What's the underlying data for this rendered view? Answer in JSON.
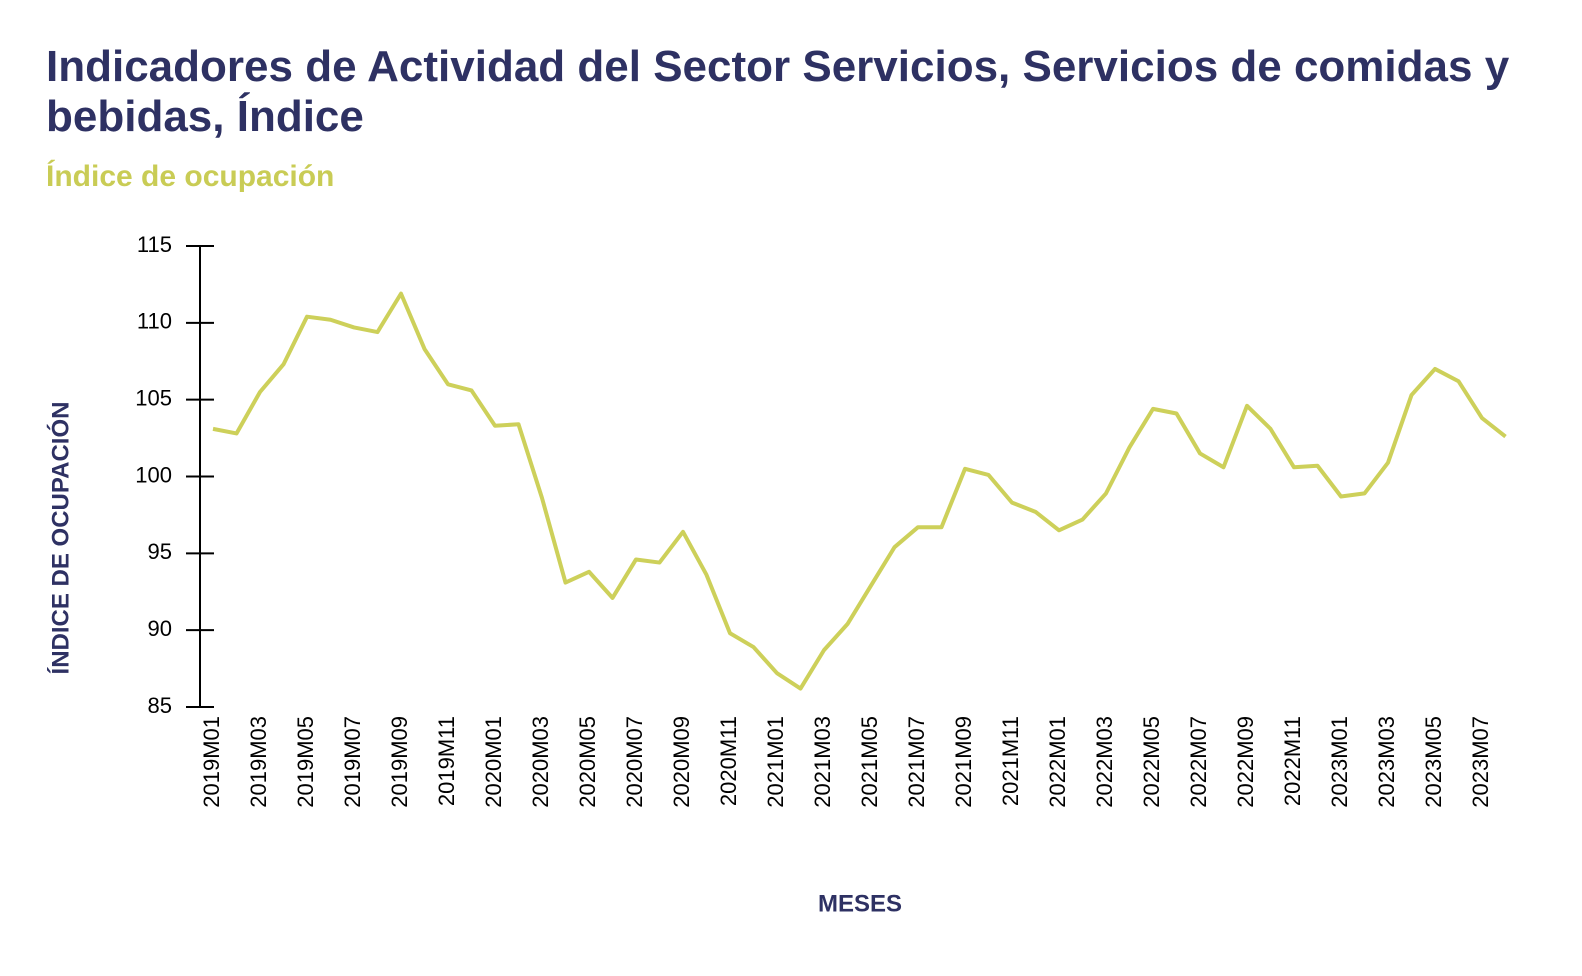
{
  "chart_data": {
    "type": "line",
    "title": "Indicadores de Actividad del Sector Servicios, Servicios de comidas y bebidas, Índice",
    "subtitle": "Índice de ocupación",
    "y_label": "ÍNDICE DE OCUPACIÓN",
    "x_label": "MESES",
    "categories": [
      "2019M01",
      null,
      "2019M03",
      null,
      "2019M05",
      null,
      "2019M07",
      null,
      "2019M09",
      null,
      "2019M11",
      null,
      "2020M01",
      null,
      "2020M03",
      null,
      "2020M05",
      null,
      "2020M07",
      null,
      "2020M09",
      null,
      "2020M11",
      null,
      "2021M01",
      null,
      "2021M03",
      null,
      "2021M05",
      null,
      "2021M07",
      null,
      "2021M09",
      null,
      "2021M11",
      null,
      "2022M01",
      null,
      "2022M03",
      null,
      "2022M05",
      null,
      "2022M07",
      null,
      "2022M09",
      null,
      "2022M11",
      null,
      "2023M01",
      null,
      "2023M03",
      null,
      "2023M05",
      null,
      "2023M07",
      null
    ],
    "values": [
      103.1,
      102.8,
      105.5,
      107.3,
      110.4,
      110.2,
      109.7,
      109.4,
      111.9,
      108.3,
      106.0,
      105.6,
      103.3,
      103.4,
      98.6,
      93.1,
      93.8,
      92.1,
      94.6,
      94.4,
      96.4,
      93.6,
      89.8,
      88.9,
      87.2,
      86.2,
      88.7,
      90.4,
      92.9,
      95.4,
      96.7,
      96.7,
      100.5,
      100.1,
      98.3,
      97.7,
      96.5,
      97.2,
      98.9,
      101.9,
      104.4,
      104.1,
      101.5,
      100.6,
      104.6,
      103.1,
      100.6,
      100.7,
      98.7,
      98.9,
      100.9,
      105.3,
      107.0,
      106.2,
      103.8,
      102.6
    ],
    "color": "#cdd05a",
    "ylim": [
      85,
      115
    ],
    "yticks": [
      85,
      90,
      95,
      100,
      105,
      110,
      115
    ]
  }
}
